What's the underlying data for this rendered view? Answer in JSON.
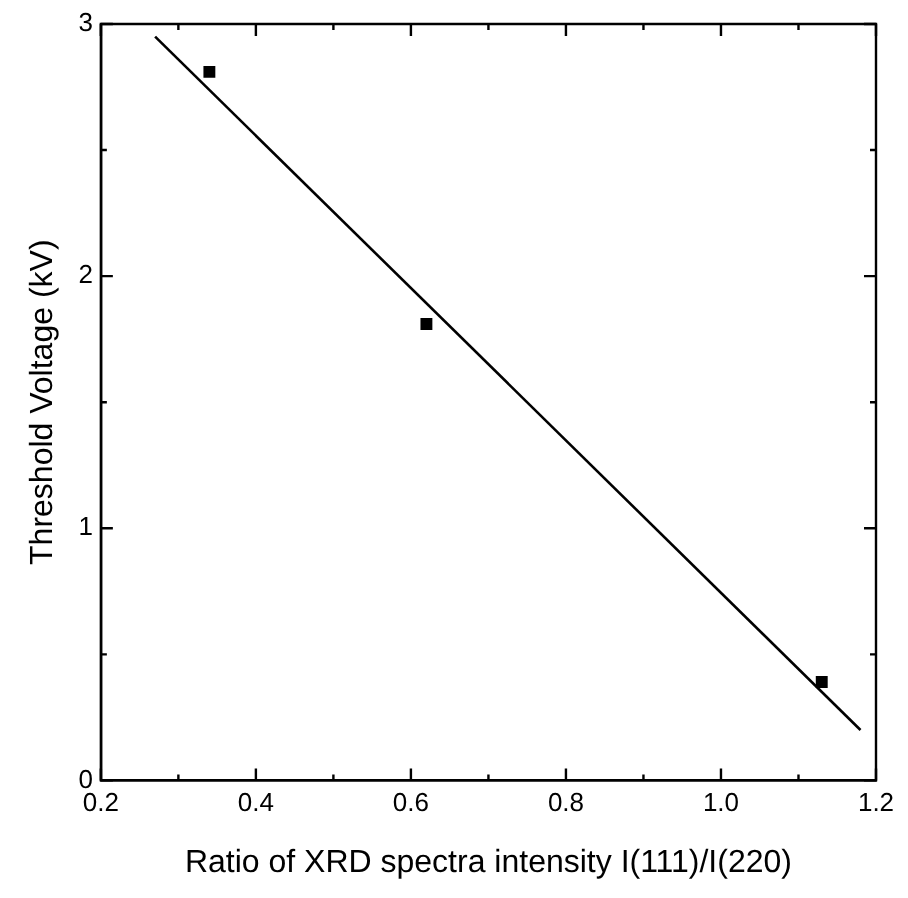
{
  "chart_data": {
    "type": "scatter",
    "xlabel": "Ratio of XRD spectra intensity I(111)/I(220)",
    "ylabel": "Threshold Voltage (kV)",
    "xlim": [
      0.2,
      1.2
    ],
    "ylim": [
      0,
      3
    ],
    "xticks": [
      {
        "value": 0.2,
        "label": "0.2"
      },
      {
        "value": 0.4,
        "label": "0.4"
      },
      {
        "value": 0.6,
        "label": "0.6"
      },
      {
        "value": 0.8,
        "label": "0.8"
      },
      {
        "value": 1.0,
        "label": "1.0"
      },
      {
        "value": 1.2,
        "label": "1.2"
      }
    ],
    "yticks": [
      0,
      1,
      2,
      3
    ],
    "marker": "square",
    "legend": false,
    "grid": false,
    "series": [
      {
        "color": "#000000",
        "x": [
          0.34,
          0.62,
          1.13
        ],
        "values": [
          2.81,
          1.81,
          0.39
        ]
      },
      {
        "type": "line",
        "color": "#000000",
        "marker": "none",
        "x": [
          0.27,
          1.18
        ],
        "values": [
          2.95,
          0.2
        ]
      }
    ]
  }
}
